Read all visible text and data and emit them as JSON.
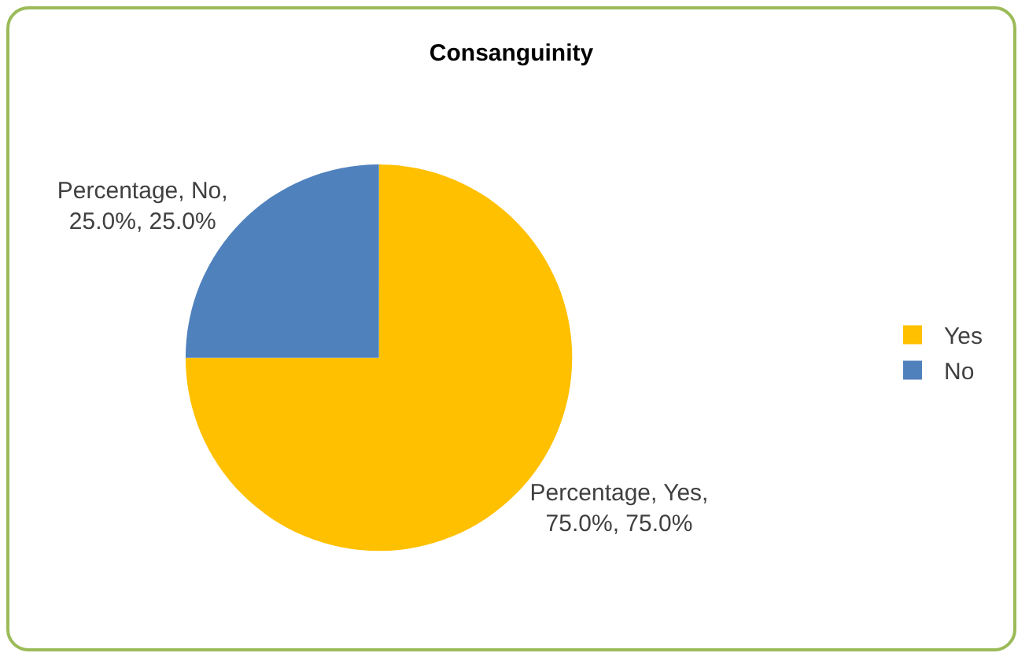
{
  "chart_data": {
    "type": "pie",
    "title": "Consanguinity",
    "categories": [
      "Yes",
      "No"
    ],
    "values": [
      75,
      25
    ],
    "colors": [
      "#ffc000",
      "#4f81bd"
    ],
    "value_labels": [
      "Percentage, Yes, 75.0%, 75.0%",
      "Percentage, No, 25.0%, 25.0%"
    ],
    "legend": "right"
  }
}
